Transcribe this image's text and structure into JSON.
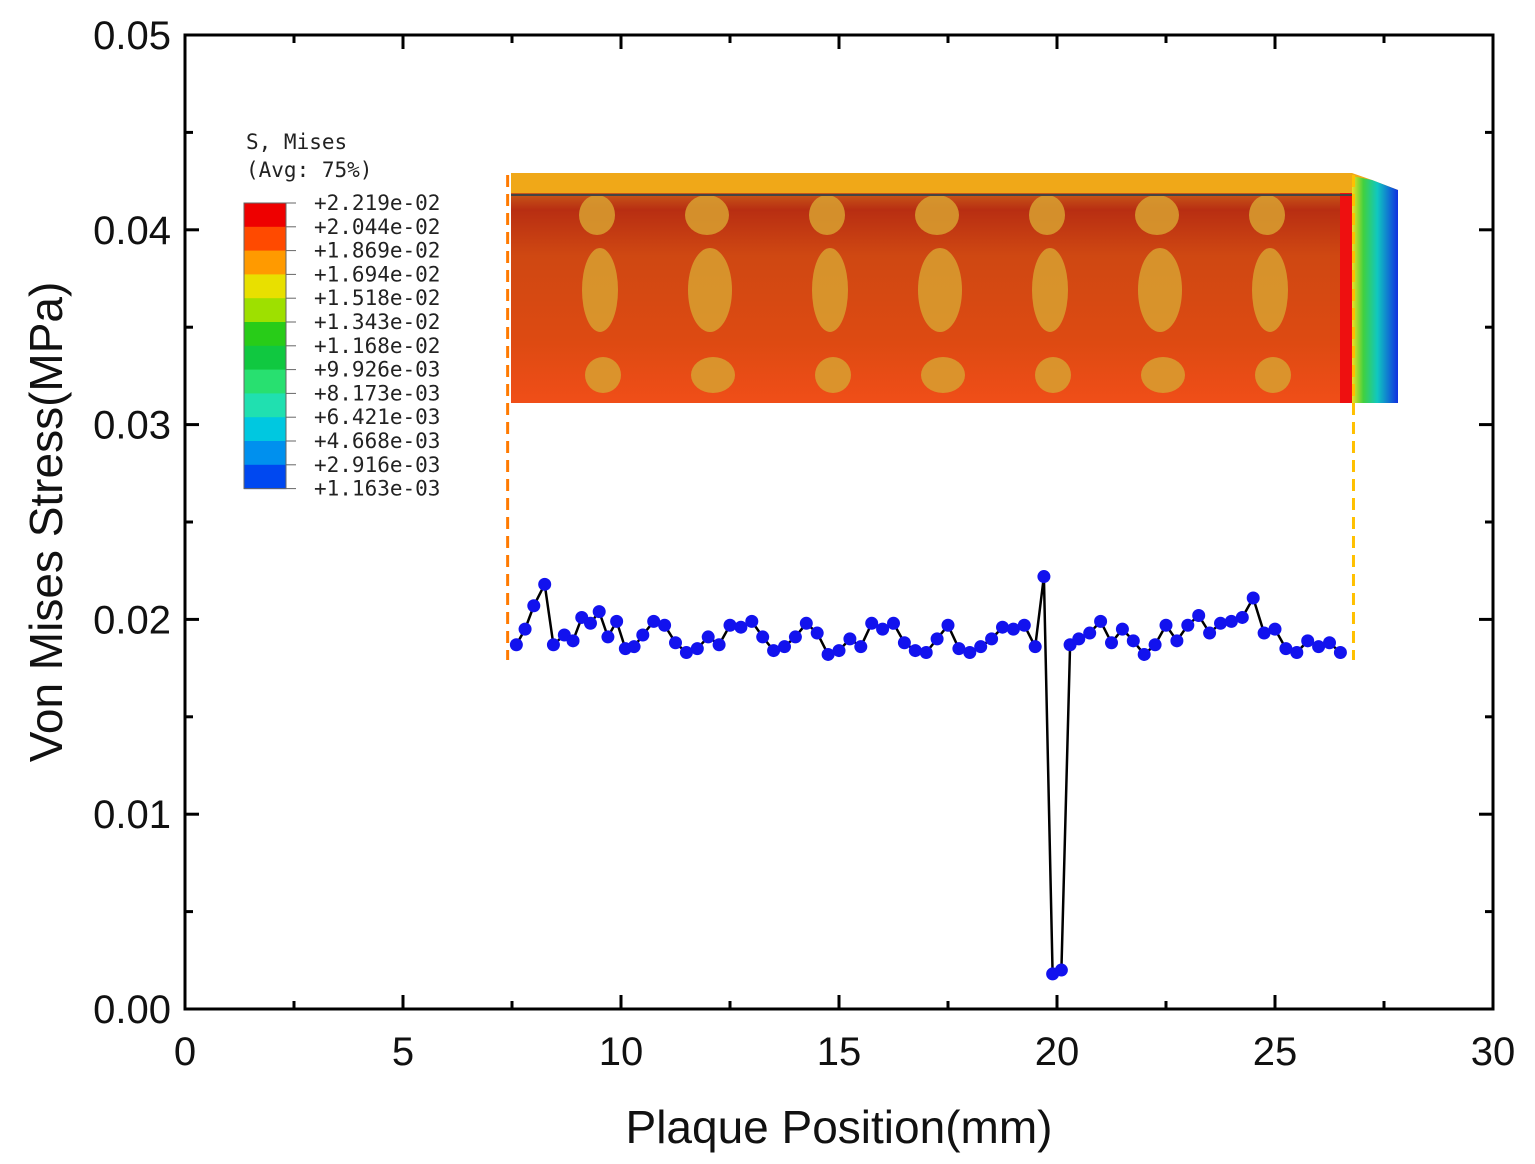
{
  "chart_data": {
    "type": "line",
    "title": "",
    "xlabel": "Plaque Position(mm)",
    "ylabel": "Von Mises Stress(MPa)",
    "xlim": [
      0,
      30
    ],
    "ylim": [
      0.0,
      0.05
    ],
    "x_ticks": [
      "0",
      "5",
      "10",
      "15",
      "20",
      "25",
      "30"
    ],
    "y_ticks": [
      "0.00",
      "0.01",
      "0.02",
      "0.03",
      "0.04",
      "0.05"
    ],
    "grid": false,
    "series": [
      {
        "name": "Von Mises Stress",
        "line_color": "#000000",
        "marker_color": "#1212ee",
        "x": [
          7.6,
          7.8,
          8.0,
          8.25,
          8.45,
          8.7,
          8.9,
          9.1,
          9.3,
          9.5,
          9.7,
          9.9,
          10.1,
          10.3,
          10.5,
          10.75,
          11.0,
          11.25,
          11.5,
          11.75,
          12.0,
          12.25,
          12.5,
          12.75,
          13.0,
          13.25,
          13.5,
          13.75,
          14.0,
          14.25,
          14.5,
          14.75,
          15.0,
          15.25,
          15.5,
          15.75,
          16.0,
          16.25,
          16.5,
          16.75,
          17.0,
          17.25,
          17.5,
          17.75,
          18.0,
          18.25,
          18.5,
          18.75,
          19.0,
          19.25,
          19.5,
          19.7,
          19.9,
          20.1,
          20.3,
          20.5,
          20.75,
          21.0,
          21.25,
          21.5,
          21.75,
          22.0,
          22.25,
          22.5,
          22.75,
          23.0,
          23.25,
          23.5,
          23.75,
          24.0,
          24.25,
          24.5,
          24.75,
          25.0,
          25.25,
          25.5,
          25.75,
          26.0,
          26.25,
          26.5
        ],
        "y": [
          0.0187,
          0.0195,
          0.0207,
          0.0218,
          0.0187,
          0.0192,
          0.0189,
          0.0201,
          0.0198,
          0.0204,
          0.0191,
          0.0199,
          0.0185,
          0.0186,
          0.0192,
          0.0199,
          0.0197,
          0.0188,
          0.0183,
          0.0185,
          0.0191,
          0.0187,
          0.0197,
          0.0196,
          0.0199,
          0.0191,
          0.0184,
          0.0186,
          0.0191,
          0.0198,
          0.0193,
          0.0182,
          0.0184,
          0.019,
          0.0186,
          0.0198,
          0.0195,
          0.0198,
          0.0188,
          0.0184,
          0.0183,
          0.019,
          0.0197,
          0.0185,
          0.0183,
          0.0186,
          0.019,
          0.0196,
          0.0195,
          0.0197,
          0.0186,
          0.0222,
          0.0018,
          0.002,
          0.0187,
          0.019,
          0.0193,
          0.0199,
          0.0188,
          0.0195,
          0.0189,
          0.0182,
          0.0187,
          0.0197,
          0.0189,
          0.0197,
          0.0202,
          0.0193,
          0.0198,
          0.0199,
          0.0201,
          0.0211,
          0.0193,
          0.0195,
          0.0185,
          0.0183,
          0.0189,
          0.0186,
          0.0188,
          0.0183
        ]
      }
    ],
    "legend": {
      "title_line1": "S, Mises",
      "title_line2": "(Avg: 75%)",
      "entries": [
        "+2.219e-02",
        "+2.044e-02",
        "+1.869e-02",
        "+1.694e-02",
        "+1.518e-02",
        "+1.343e-02",
        "+1.168e-02",
        "+9.926e-03",
        "+8.173e-03",
        "+6.421e-03",
        "+4.668e-03",
        "+2.916e-03",
        "+1.163e-03"
      ],
      "band_colors": [
        "#ee0000",
        "#ff4a00",
        "#ff9a00",
        "#e8e000",
        "#9ee000",
        "#28cc18",
        "#10c840",
        "#28e070",
        "#20e0b0",
        "#00c8e0",
        "#0090ee",
        "#0048f0",
        "#0018e8"
      ]
    },
    "contour_inset": {
      "x_start": 7.4,
      "x_end": 26.8,
      "guide_left_color": "#ff7a00",
      "guide_right_color": "#ffc000"
    }
  }
}
